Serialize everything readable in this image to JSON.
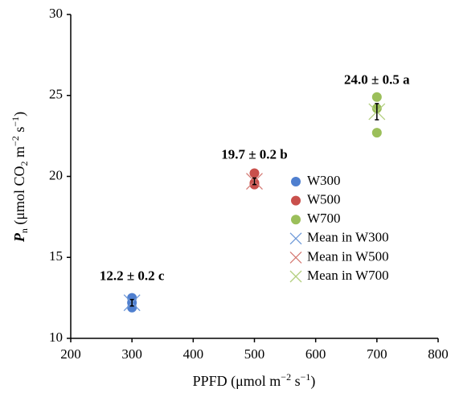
{
  "chart_data": {
    "type": "scatter",
    "xlim": [
      200,
      800
    ],
    "xticks": [
      200,
      300,
      400,
      500,
      600,
      700,
      800
    ],
    "ylim": [
      10,
      30
    ],
    "yticks": [
      10,
      15,
      20,
      25,
      30
    ],
    "grid": false,
    "legend": "center-right",
    "xlabel": [
      "PPFD (μmol m",
      "−2",
      " s",
      "−1",
      ")"
    ],
    "ylabel": [
      "P",
      "n",
      " (μmol CO",
      "2",
      " m",
      "−2",
      " s",
      "−1",
      ")"
    ],
    "series": [
      {
        "name": "W300",
        "color": "#4f7fcf",
        "x": [
          300,
          300,
          300
        ],
        "values": [
          12.5,
          12.2,
          11.9
        ]
      },
      {
        "name": "W500",
        "color": "#c9504c",
        "x": [
          500,
          500,
          500
        ],
        "values": [
          20.2,
          19.6,
          19.5
        ]
      },
      {
        "name": "W700",
        "color": "#9bbf5a",
        "x": [
          700,
          700,
          700
        ],
        "values": [
          24.9,
          24.2,
          22.7
        ]
      }
    ],
    "mean_series": [
      {
        "name": "Mean in W300",
        "color": "#6f99d8",
        "x": [
          300
        ],
        "values": [
          12.2
        ],
        "errors": [
          0.2
        ],
        "annotation": "12.2 ± 0.2 c"
      },
      {
        "name": "Mean in W500",
        "color": "#d57b74",
        "x": [
          500
        ],
        "values": [
          19.7
        ],
        "errors": [
          0.2
        ],
        "annotation": "19.7 ± 0.2 b"
      },
      {
        "name": "Mean in W700",
        "color": "#b3cf7f",
        "x": [
          700
        ],
        "values": [
          24.0
        ],
        "errors": [
          0.5
        ],
        "annotation": "24.0 ± 0.5 a"
      }
    ]
  }
}
